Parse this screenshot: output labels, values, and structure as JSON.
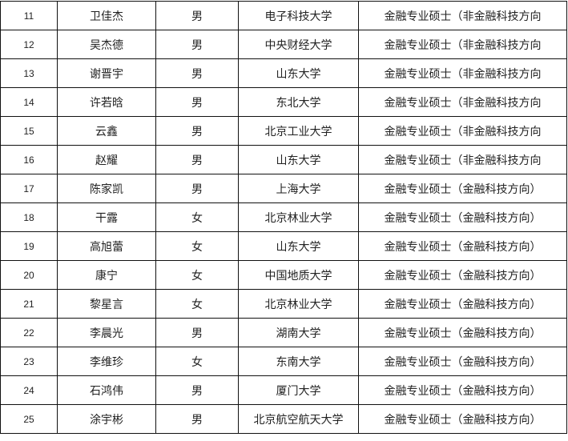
{
  "rows": [
    {
      "no": "11",
      "name": "卫佳杰",
      "gender": "男",
      "school": "电子科技大学",
      "major": "金融专业硕士（非金融科技方向"
    },
    {
      "no": "12",
      "name": "吴杰德",
      "gender": "男",
      "school": "中央财经大学",
      "major": "金融专业硕士（非金融科技方向"
    },
    {
      "no": "13",
      "name": "谢晋宇",
      "gender": "男",
      "school": "山东大学",
      "major": "金融专业硕士（非金融科技方向"
    },
    {
      "no": "14",
      "name": "许若晗",
      "gender": "男",
      "school": "东北大学",
      "major": "金融专业硕士（非金融科技方向"
    },
    {
      "no": "15",
      "name": "云鑫",
      "gender": "男",
      "school": "北京工业大学",
      "major": "金融专业硕士（非金融科技方向"
    },
    {
      "no": "16",
      "name": "赵耀",
      "gender": "男",
      "school": "山东大学",
      "major": "金融专业硕士（非金融科技方向"
    },
    {
      "no": "17",
      "name": "陈家凯",
      "gender": "男",
      "school": "上海大学",
      "major": "金融专业硕士（金融科技方向）"
    },
    {
      "no": "18",
      "name": "干露",
      "gender": "女",
      "school": "北京林业大学",
      "major": "金融专业硕士（金融科技方向）"
    },
    {
      "no": "19",
      "name": "高旭蕾",
      "gender": "女",
      "school": "山东大学",
      "major": "金融专业硕士（金融科技方向）"
    },
    {
      "no": "20",
      "name": "康宁",
      "gender": "女",
      "school": "中国地质大学",
      "major": "金融专业硕士（金融科技方向）"
    },
    {
      "no": "21",
      "name": "黎星言",
      "gender": "女",
      "school": "北京林业大学",
      "major": "金融专业硕士（金融科技方向）"
    },
    {
      "no": "22",
      "name": "李晨光",
      "gender": "男",
      "school": "湖南大学",
      "major": "金融专业硕士（金融科技方向）"
    },
    {
      "no": "23",
      "name": "李维珍",
      "gender": "女",
      "school": "东南大学",
      "major": "金融专业硕士（金融科技方向）"
    },
    {
      "no": "24",
      "name": "石鸿伟",
      "gender": "男",
      "school": "厦门大学",
      "major": "金融专业硕士（金融科技方向）"
    },
    {
      "no": "25",
      "name": "涂宇彬",
      "gender": "男",
      "school": "北京航空航天大学",
      "major": "金融专业硕士（金融科技方向）"
    }
  ]
}
